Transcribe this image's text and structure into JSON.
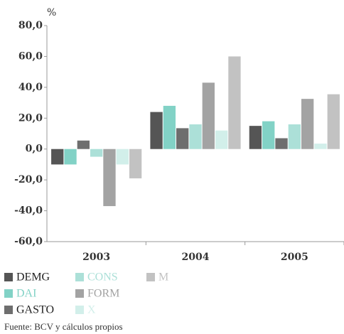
{
  "chart_data": {
    "type": "bar",
    "y_label": "%",
    "categories": [
      "2003",
      "2004",
      "2005"
    ],
    "series": [
      {
        "name": "DEMG",
        "color": "#555555",
        "values": [
          -10,
          24,
          15
        ]
      },
      {
        "name": "DAI",
        "color": "#82d2c6",
        "values": [
          -10,
          28,
          18
        ]
      },
      {
        "name": "GASTO",
        "color": "#6e6e6e",
        "values": [
          5.5,
          13.5,
          7
        ]
      },
      {
        "name": "CONS",
        "color": "#ace0d8",
        "values": [
          -5,
          16,
          16
        ]
      },
      {
        "name": "FORM",
        "color": "#a3a3a3",
        "values": [
          -37,
          43,
          32.5
        ]
      },
      {
        "name": "X",
        "color": "#d2efea",
        "values": [
          -10,
          12,
          3.5
        ]
      },
      {
        "name": "M",
        "color": "#c2c2c2",
        "values": [
          -19,
          60,
          35.5
        ]
      }
    ],
    "ylim": [
      -60,
      80
    ],
    "yticks": [
      {
        "value": -60,
        "label": "-60,0"
      },
      {
        "value": -40,
        "label": "-40,0"
      },
      {
        "value": -20,
        "label": "-20,0"
      },
      {
        "value": 0,
        "label": "0,0"
      },
      {
        "value": 20,
        "label": "20,0"
      },
      {
        "value": 40,
        "label": "40,0"
      },
      {
        "value": 60,
        "label": "60,0"
      },
      {
        "value": 80,
        "label": "80,0"
      }
    ],
    "grid": false,
    "source": "Fuente: BCV y cálculos propios"
  }
}
